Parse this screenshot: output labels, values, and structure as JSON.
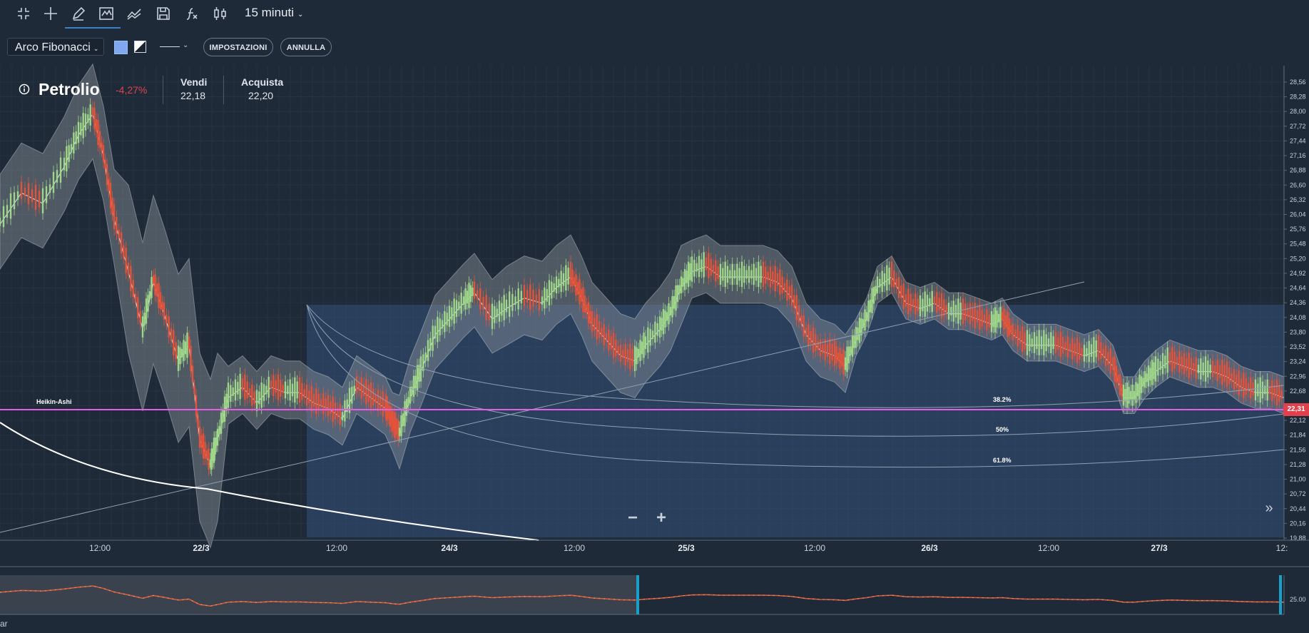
{
  "toolbar": {
    "icons": [
      "collapse-icon",
      "crosshair-icon",
      "pencil-icon",
      "indicator-icon",
      "compare-icon",
      "save-icon",
      "function-icon",
      "candles-icon"
    ],
    "timeframe": "15 minuti"
  },
  "drawing_bar": {
    "tool": "Arco Fibonacci",
    "settings_label": "IMPOSTAZIONI",
    "undo_label": "ANNULLA"
  },
  "instrument": {
    "name": "Petrolio",
    "change": "-4,27%",
    "sell_label": "Vendi",
    "sell_value": "22,18",
    "buy_label": "Acquista",
    "buy_value": "22,20"
  },
  "chart_data": {
    "type": "candlestick",
    "indicator_label": "Heikin-Ashi",
    "price_axis": [
      "28,56",
      "28,28",
      "28,00",
      "27,72",
      "27,44",
      "27,16",
      "26,88",
      "26,60",
      "26,32",
      "26,04",
      "25,76",
      "25,48",
      "25,20",
      "24,92",
      "24,64",
      "24,36",
      "24,08",
      "23,80",
      "23,52",
      "23,24",
      "22,96",
      "22,68",
      "22,40",
      "22,12",
      "21,84",
      "21,56",
      "21,28",
      "21,00",
      "20,72",
      "20,44",
      "20,16",
      "19,88"
    ],
    "time_axis": [
      "12:00",
      "22/3",
      "12:00",
      "24/3",
      "12:00",
      "25/3",
      "12:00",
      "26/3",
      "12:00",
      "27/3",
      "12:"
    ],
    "current_price": "22,31",
    "fib_levels": [
      "38.2%",
      "50%",
      "61.8%"
    ],
    "navigator_label": "25.00",
    "ylim": [
      19.88,
      28.56
    ]
  },
  "status_text": "ar",
  "colors": {
    "background": "#1f2a38",
    "up": "#9fd68a",
    "down": "#e2533b",
    "price_line": "#e45ee8",
    "fib_zone": "#33507a"
  }
}
